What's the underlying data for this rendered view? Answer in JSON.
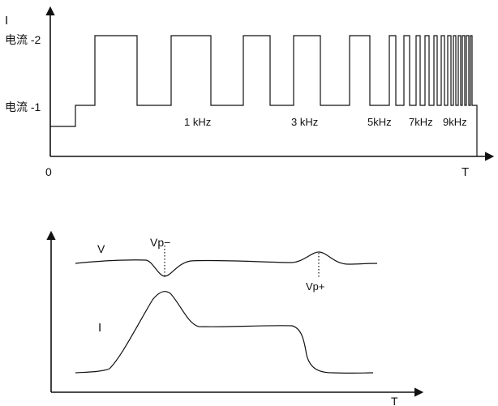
{
  "top_panel": {
    "y_axis_label": "I",
    "origin_label": "0",
    "x_axis_label": "T",
    "level_high_label": "电流 -2",
    "level_low_label": "电流 -1",
    "freq_labels": [
      "1 kHz",
      "3 kHz",
      "5kHz",
      "7kHz",
      "9kHz"
    ]
  },
  "bottom_panel": {
    "x_axis_label": "T",
    "voltage_label": "V",
    "current_label": "I",
    "peak_minus_label": "Vp−",
    "peak_plus_label": "Vp+"
  }
}
